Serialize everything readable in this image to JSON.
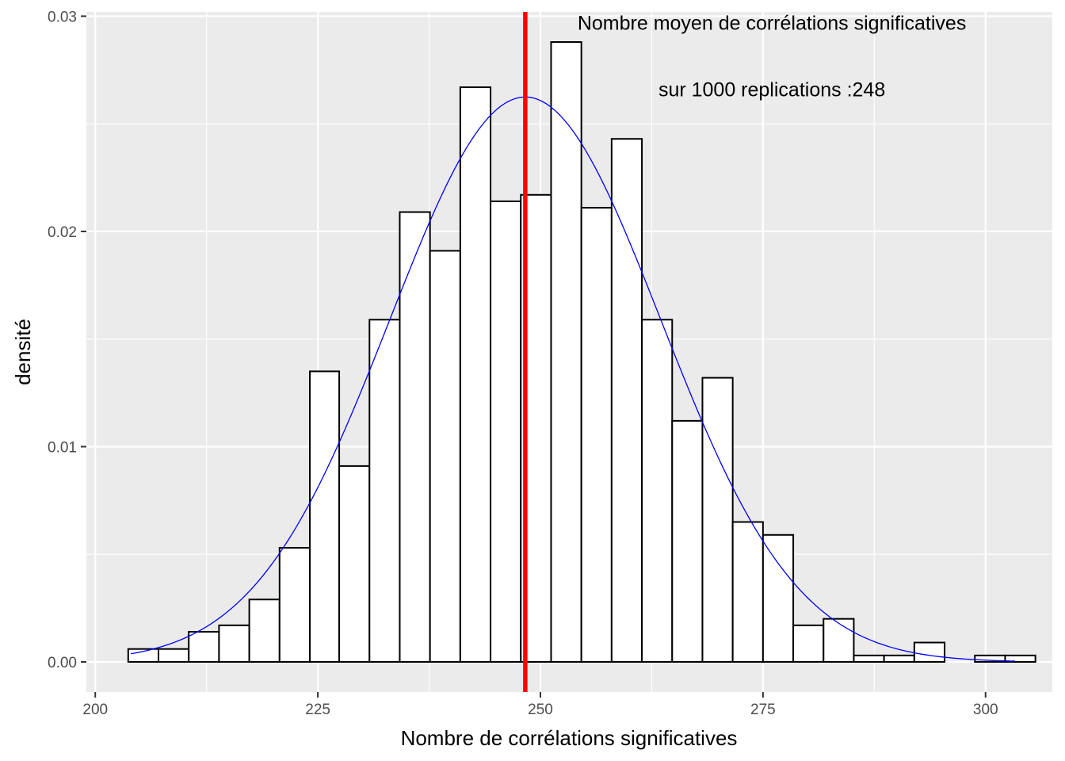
{
  "chart_data": {
    "type": "histogram",
    "title": "",
    "xlabel": "Nombre de corrélations significatives",
    "ylabel": "densité",
    "xlim": [
      199,
      307.5
    ],
    "ylim": [
      -0.0014,
      0.0302
    ],
    "x_ticks": [
      200,
      225,
      250,
      275,
      300
    ],
    "x_tick_labels": [
      "200",
      "225",
      "250",
      "275",
      "300"
    ],
    "y_ticks": [
      0,
      0.01,
      0.02,
      0.03
    ],
    "y_tick_labels": [
      "0.00",
      "0.01",
      "0.02",
      "0.03"
    ],
    "grid": true,
    "bin_width": 3.39,
    "bins": [
      {
        "x0": 203.7,
        "x1": 207.1,
        "density": 0.0006
      },
      {
        "x0": 207.1,
        "x1": 210.5,
        "density": 0.0006
      },
      {
        "x0": 210.5,
        "x1": 213.9,
        "density": 0.0014
      },
      {
        "x0": 213.9,
        "x1": 217.3,
        "density": 0.0017
      },
      {
        "x0": 217.3,
        "x1": 220.7,
        "density": 0.0029
      },
      {
        "x0": 220.7,
        "x1": 224.1,
        "density": 0.0053
      },
      {
        "x0": 224.1,
        "x1": 227.4,
        "density": 0.0135
      },
      {
        "x0": 227.4,
        "x1": 230.8,
        "density": 0.0091
      },
      {
        "x0": 230.8,
        "x1": 234.2,
        "density": 0.0159
      },
      {
        "x0": 234.2,
        "x1": 237.6,
        "density": 0.0209
      },
      {
        "x0": 237.6,
        "x1": 241.0,
        "density": 0.0191
      },
      {
        "x0": 241.0,
        "x1": 244.4,
        "density": 0.0267
      },
      {
        "x0": 244.4,
        "x1": 247.8,
        "density": 0.0214
      },
      {
        "x0": 247.8,
        "x1": 251.2,
        "density": 0.0217
      },
      {
        "x0": 251.2,
        "x1": 254.6,
        "density": 0.0288
      },
      {
        "x0": 254.6,
        "x1": 258.0,
        "density": 0.0211
      },
      {
        "x0": 258.0,
        "x1": 261.4,
        "density": 0.0243
      },
      {
        "x0": 261.4,
        "x1": 264.8,
        "density": 0.0159
      },
      {
        "x0": 264.8,
        "x1": 268.2,
        "density": 0.0112
      },
      {
        "x0": 268.2,
        "x1": 271.6,
        "density": 0.0132
      },
      {
        "x0": 271.6,
        "x1": 275.0,
        "density": 0.0065
      },
      {
        "x0": 275.0,
        "x1": 278.4,
        "density": 0.0059
      },
      {
        "x0": 278.4,
        "x1": 281.8,
        "density": 0.0017
      },
      {
        "x0": 281.8,
        "x1": 285.2,
        "density": 0.002
      },
      {
        "x0": 285.2,
        "x1": 288.6,
        "density": 0.0003
      },
      {
        "x0": 288.6,
        "x1": 292.0,
        "density": 0.0003
      },
      {
        "x0": 292.0,
        "x1": 295.4,
        "density": 0.0009
      },
      {
        "x0": 295.4,
        "x1": 298.8,
        "density": 0.0
      },
      {
        "x0": 298.8,
        "x1": 302.2,
        "density": 0.0003
      },
      {
        "x0": 302.2,
        "x1": 305.6,
        "density": 0.0003
      }
    ],
    "density_curve": {
      "type": "normal",
      "mean": 248.3,
      "sd": 15.2,
      "x_range": [
        204,
        303.3
      ],
      "color": "#0000ff"
    },
    "mean_line": {
      "x": 248.3,
      "color": "#ff0000"
    },
    "annotations": [
      {
        "text": "Nombre moyen de corrélations significatives",
        "x": 276,
        "y": 0.0297
      },
      {
        "text": "sur 1000 replications :248",
        "x": 276,
        "y": 0.0266
      }
    ],
    "colors": {
      "panel_background": "#ebebeb",
      "grid": "#ffffff",
      "bar_fill": "#ffffff",
      "bar_stroke": "#000000"
    }
  }
}
